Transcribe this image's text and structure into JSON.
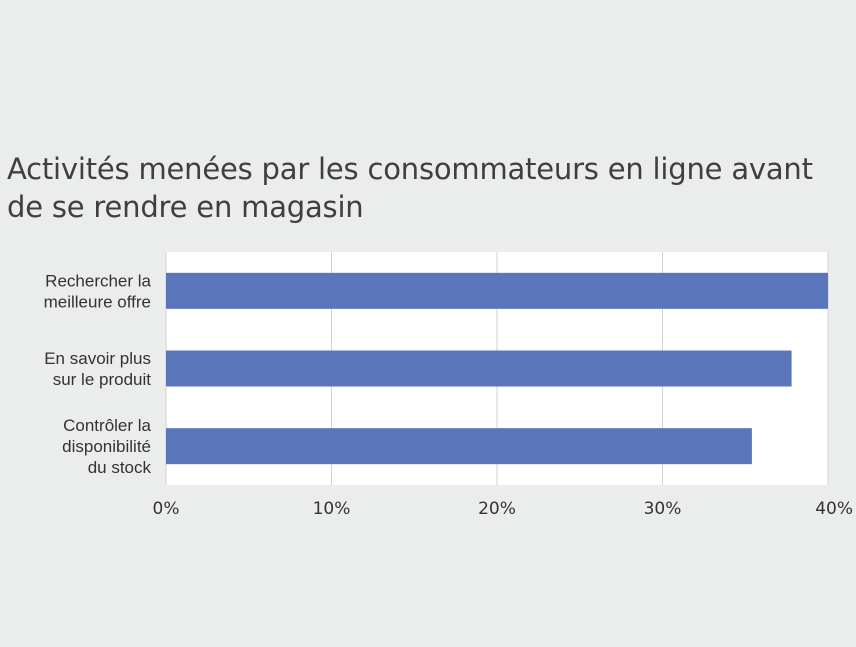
{
  "chart_data": {
    "type": "bar",
    "orientation": "horizontal",
    "title_lines": [
      "Activités menées par les consommateurs en ligne avant",
      "de se rendre en magasin"
    ],
    "categories": [
      [
        "Rechercher la",
        "meilleure offre"
      ],
      [
        "En savoir plus",
        "sur le produit"
      ],
      [
        "Contrôler la",
        "disponibilité",
        "du stock"
      ]
    ],
    "values": [
      40,
      37.8,
      35.4
    ],
    "xlim": [
      0,
      40
    ],
    "x_ticks": [
      "0%",
      "10%",
      "20%",
      "30%",
      "40%"
    ],
    "grid": "vertical",
    "colors": {
      "bar": "#5b75ba",
      "plot_background": "#ffffff",
      "page_background": "#ebecec",
      "gridline": "#d2d2d2",
      "text": "#333333"
    }
  }
}
